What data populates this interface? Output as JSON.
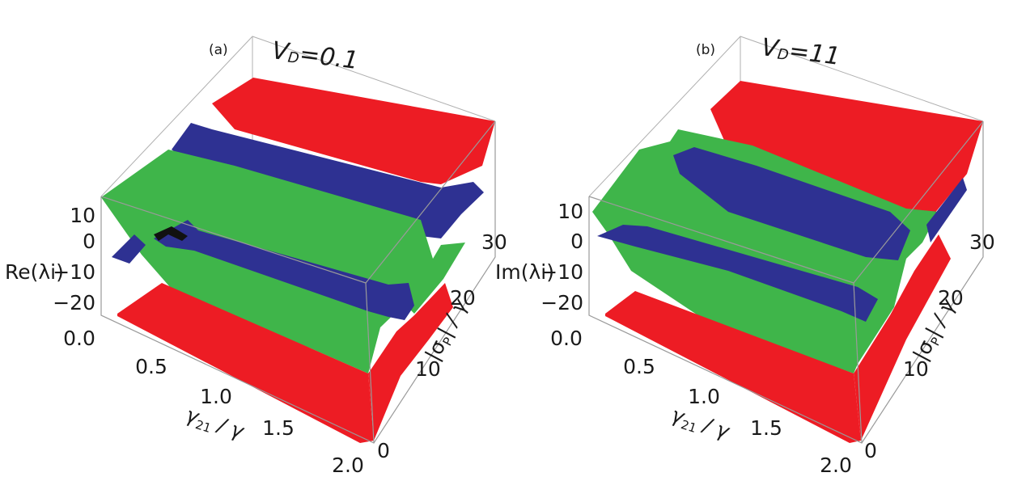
{
  "colors": {
    "red": "#ed1c24",
    "blue": "#2e3192",
    "green": "#3fb54a",
    "box": "#9a9a9a"
  },
  "chart_data": [
    {
      "type": "surface3d",
      "panel_label": "(a)",
      "title_main": "V",
      "title_sub": "D",
      "title_rest": "=0.1",
      "zlabel_text": "Re(λi)",
      "xlabel_main": "γ",
      "xlabel_sub": "21",
      "xlabel_rest": " / γ",
      "ylabel_text": "|σ",
      "ylabel_sub": "P",
      "ylabel_rest": "| / γ",
      "x_ticks": [
        "0.0",
        "0.5",
        "1.0",
        "1.5",
        "2.0"
      ],
      "y_ticks": [
        "0",
        "10",
        "20",
        "30"
      ],
      "z_ticks": [
        "10",
        "0",
        "−10",
        "−20"
      ],
      "x_range": [
        0,
        2
      ],
      "y_range": [
        0,
        30
      ],
      "z_range": [
        -25,
        15
      ],
      "surfaces": [
        {
          "color": "red",
          "approx_value": 12
        },
        {
          "color": "red",
          "approx_value": -22
        },
        {
          "color": "blue",
          "approx_value": 5
        },
        {
          "color": "blue",
          "approx_value": -5
        },
        {
          "color": "green",
          "approx_value": 0
        }
      ]
    },
    {
      "type": "surface3d",
      "panel_label": "(b)",
      "title_main": "V",
      "title_sub": "D",
      "title_rest": "=11",
      "zlabel_text": "Im(λi)",
      "xlabel_main": "γ",
      "xlabel_sub": "21",
      "xlabel_rest": " / γ",
      "ylabel_text": "|σ",
      "ylabel_sub": "P",
      "ylabel_rest": "| / γ",
      "x_ticks": [
        "0.0",
        "0.5",
        "1.0",
        "1.5",
        "2.0"
      ],
      "y_ticks": [
        "0",
        "10",
        "20",
        "30"
      ],
      "z_ticks": [
        "10",
        "0",
        "−10",
        "−20"
      ],
      "x_range": [
        0,
        2
      ],
      "y_range": [
        0,
        30
      ],
      "z_range": [
        -25,
        15
      ],
      "surfaces": [
        {
          "color": "red",
          "approx_value": 12
        },
        {
          "color": "red",
          "approx_value": -22
        },
        {
          "color": "blue",
          "approx_value": 5
        },
        {
          "color": "blue",
          "approx_value": -5
        },
        {
          "color": "green",
          "approx_value": 0
        }
      ]
    }
  ]
}
